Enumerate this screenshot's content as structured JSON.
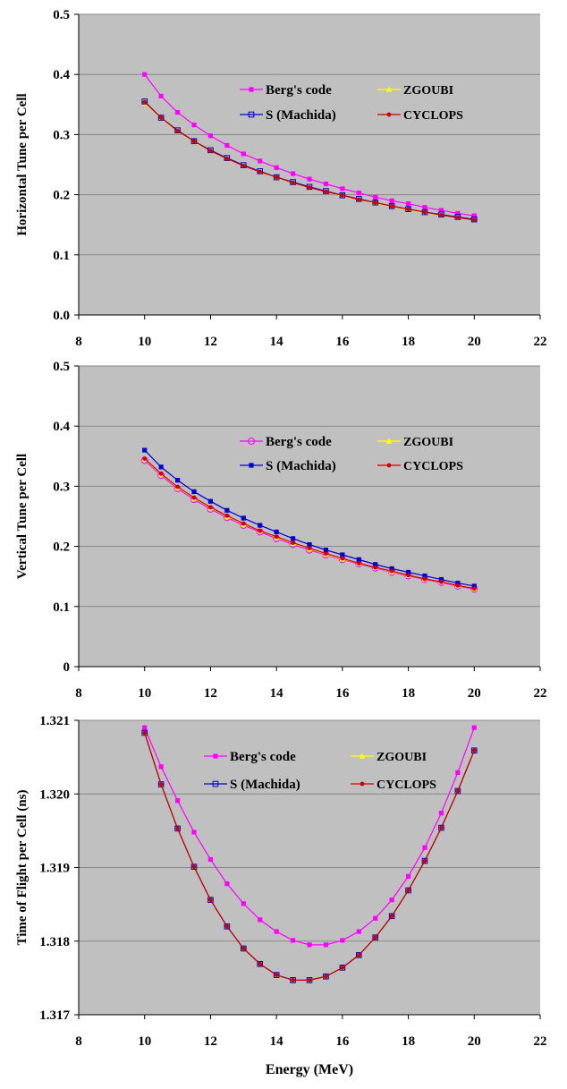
{
  "colors": {
    "plot_background": "#c0c0c0",
    "grid": "#888888",
    "bergs_code": "#ff00ff",
    "zgoubi": "#ffff00",
    "machida": "#0000cc",
    "cyclops": "#cc0000"
  },
  "chart_data": [
    {
      "type": "line",
      "ylabel": "Horizontal Tune per Cell",
      "xlabel": "",
      "xlim": [
        8,
        22
      ],
      "ylim": [
        0.0,
        0.5
      ],
      "xticks": [
        "8",
        "10",
        "12",
        "14",
        "16",
        "18",
        "20",
        "22"
      ],
      "yticks": [
        "0.0",
        "0.1",
        "0.2",
        "0.3",
        "0.4",
        "0.5"
      ],
      "grid": true,
      "legend_position": "top-right",
      "x": [
        10,
        10.5,
        11,
        11.5,
        12,
        12.5,
        13,
        13.5,
        14,
        14.5,
        15,
        15.5,
        16,
        16.5,
        17,
        17.5,
        18,
        18.5,
        19,
        19.5,
        20
      ],
      "series": [
        {
          "name": "Berg's code",
          "marker": "square-filled",
          "color_key": "bergs_code",
          "values": [
            0.4,
            0.364,
            0.337,
            0.316,
            0.298,
            0.282,
            0.268,
            0.256,
            0.245,
            0.235,
            0.226,
            0.218,
            0.21,
            0.203,
            0.196,
            0.19,
            0.185,
            0.179,
            0.174,
            0.169,
            0.165
          ]
        },
        {
          "name": "ZGOUBI",
          "marker": "triangle-filled",
          "color_key": "zgoubi",
          "values": [
            0.353,
            0.327,
            0.306,
            0.288,
            0.273,
            0.26,
            0.248,
            0.238,
            0.228,
            0.22,
            0.212,
            0.205,
            0.198,
            0.192,
            0.186,
            0.18,
            0.175,
            0.17,
            0.166,
            0.162,
            0.158
          ]
        },
        {
          "name": "S (Machida)",
          "marker": "square-open",
          "color_key": "machida",
          "values": [
            0.355,
            0.328,
            0.307,
            0.289,
            0.274,
            0.261,
            0.249,
            0.239,
            0.229,
            0.221,
            0.213,
            0.206,
            0.199,
            0.193,
            0.187,
            0.181,
            0.176,
            0.171,
            0.167,
            0.163,
            0.159
          ]
        },
        {
          "name": "CYCLOPS",
          "marker": "circle-filled",
          "color_key": "cyclops",
          "values": [
            0.354,
            0.328,
            0.306,
            0.289,
            0.273,
            0.26,
            0.248,
            0.238,
            0.229,
            0.22,
            0.212,
            0.205,
            0.199,
            0.192,
            0.187,
            0.181,
            0.176,
            0.171,
            0.166,
            0.162,
            0.158
          ]
        }
      ],
      "legend_layout": [
        [
          "Berg's code",
          "ZGOUBI"
        ],
        [
          "S (Machida)",
          "CYCLOPS"
        ]
      ]
    },
    {
      "type": "line",
      "ylabel": "Vertical Tune per Cell",
      "xlabel": "",
      "xlim": [
        8,
        22
      ],
      "ylim": [
        0,
        0.5
      ],
      "xticks": [
        "8",
        "10",
        "12",
        "14",
        "16",
        "18",
        "20",
        "22"
      ],
      "yticks": [
        "0",
        "0.1",
        "0.2",
        "0.3",
        "0.4",
        "0.5"
      ],
      "grid": true,
      "legend_position": "top-right",
      "x": [
        10,
        10.5,
        11,
        11.5,
        12,
        12.5,
        13,
        13.5,
        14,
        14.5,
        15,
        15.5,
        16,
        16.5,
        17,
        17.5,
        18,
        18.5,
        19,
        19.5,
        20
      ],
      "series": [
        {
          "name": "Berg's code",
          "marker": "circle-open",
          "color_key": "bergs_code",
          "values": [
            0.343,
            0.318,
            0.296,
            0.278,
            0.262,
            0.248,
            0.235,
            0.224,
            0.213,
            0.203,
            0.194,
            0.186,
            0.178,
            0.171,
            0.164,
            0.157,
            0.151,
            0.145,
            0.14,
            0.134,
            0.129
          ]
        },
        {
          "name": "ZGOUBI",
          "marker": "triangle-filled",
          "color_key": "zgoubi",
          "values": [
            0.345,
            0.32,
            0.298,
            0.28,
            0.264,
            0.25,
            0.237,
            0.226,
            0.215,
            0.205,
            0.196,
            0.187,
            0.179,
            0.172,
            0.165,
            0.158,
            0.152,
            0.146,
            0.141,
            0.135,
            0.13
          ]
        },
        {
          "name": "S (Machida)",
          "marker": "square-filled",
          "color_key": "machida",
          "values": [
            0.36,
            0.332,
            0.31,
            0.291,
            0.275,
            0.26,
            0.247,
            0.235,
            0.224,
            0.213,
            0.203,
            0.194,
            0.186,
            0.178,
            0.17,
            0.163,
            0.157,
            0.151,
            0.145,
            0.139,
            0.134
          ]
        },
        {
          "name": "CYCLOPS",
          "marker": "circle-filled",
          "color_key": "cyclops",
          "values": [
            0.346,
            0.321,
            0.299,
            0.281,
            0.265,
            0.251,
            0.238,
            0.226,
            0.216,
            0.206,
            0.197,
            0.188,
            0.18,
            0.172,
            0.165,
            0.159,
            0.152,
            0.146,
            0.141,
            0.135,
            0.13
          ]
        }
      ],
      "legend_layout": [
        [
          "Berg's code",
          "ZGOUBI"
        ],
        [
          "S (Machida)",
          "CYCLOPS"
        ]
      ]
    },
    {
      "type": "line",
      "ylabel": "Time of Flight per Cell (ns)",
      "xlabel": "Energy (MeV)",
      "xlim": [
        8,
        22
      ],
      "ylim": [
        1.317,
        1.321
      ],
      "xticks": [
        "8",
        "10",
        "12",
        "14",
        "16",
        "18",
        "20",
        "22"
      ],
      "yticks": [
        "1.317",
        "1.318",
        "1.319",
        "1.320",
        "1.321"
      ],
      "grid": true,
      "legend_position": "top-right",
      "x": [
        10,
        10.5,
        11,
        11.5,
        12,
        12.5,
        13,
        13.5,
        14,
        14.5,
        15,
        15.5,
        16,
        16.5,
        17,
        17.5,
        18,
        18.5,
        19,
        19.5,
        20
      ],
      "series": [
        {
          "name": "Berg's code",
          "marker": "square-filled",
          "color_key": "bergs_code",
          "values": [
            1.3209,
            1.32037,
            1.31991,
            1.31948,
            1.31911,
            1.31878,
            1.31851,
            1.31829,
            1.31813,
            1.31801,
            1.31795,
            1.31795,
            1.31801,
            1.31813,
            1.31831,
            1.31856,
            1.31888,
            1.31927,
            1.31974,
            1.32029,
            1.3209
          ]
        },
        {
          "name": "ZGOUBI",
          "marker": "triangle-filled",
          "color_key": "zgoubi",
          "values": [
            1.32083,
            1.32013,
            1.31953,
            1.31901,
            1.31856,
            1.3182,
            1.3179,
            1.31769,
            1.31754,
            1.31747,
            1.31747,
            1.31752,
            1.31764,
            1.31781,
            1.31805,
            1.31834,
            1.31869,
            1.31909,
            1.31954,
            1.32004,
            1.32059
          ]
        },
        {
          "name": "S (Machida)",
          "marker": "square-open",
          "color_key": "machida",
          "values": [
            1.32083,
            1.32013,
            1.31953,
            1.31901,
            1.31856,
            1.3182,
            1.3179,
            1.31769,
            1.31754,
            1.31747,
            1.31747,
            1.31752,
            1.31764,
            1.31781,
            1.31805,
            1.31834,
            1.31869,
            1.31909,
            1.31954,
            1.32004,
            1.32059
          ]
        },
        {
          "name": "CYCLOPS",
          "marker": "circle-filled",
          "color_key": "cyclops",
          "values": [
            1.32083,
            1.32013,
            1.31953,
            1.31901,
            1.31856,
            1.3182,
            1.3179,
            1.31769,
            1.31754,
            1.31747,
            1.31747,
            1.31752,
            1.31764,
            1.31781,
            1.31805,
            1.31834,
            1.31869,
            1.31909,
            1.31954,
            1.32004,
            1.32059
          ]
        }
      ],
      "legend_layout": [
        [
          "Berg's code",
          "ZGOUBI"
        ],
        [
          "S (Machida)",
          "CYCLOPS"
        ]
      ]
    }
  ]
}
